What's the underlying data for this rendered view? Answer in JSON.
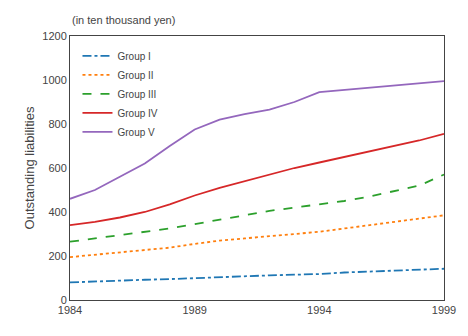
{
  "chart_data": {
    "type": "line",
    "x": [
      1984,
      1985,
      1986,
      1987,
      1988,
      1989,
      1990,
      1991,
      1992,
      1993,
      1994,
      1995,
      1996,
      1997,
      1998,
      1999
    ],
    "series": [
      {
        "name": "Group I",
        "line_style": "dashdot",
        "values": [
          80,
          85,
          90,
          92,
          95,
          100,
          105,
          108,
          112,
          115,
          118,
          125,
          130,
          135,
          138,
          142
        ]
      },
      {
        "name": "Group II",
        "line_style": "dotted",
        "values": [
          195,
          205,
          215,
          225,
          238,
          255,
          270,
          280,
          290,
          300,
          310,
          325,
          340,
          355,
          370,
          385
        ]
      },
      {
        "name": "Group III",
        "line_style": "dashed",
        "values": [
          265,
          280,
          292,
          308,
          325,
          345,
          365,
          385,
          405,
          420,
          435,
          450,
          470,
          495,
          520,
          570
        ]
      },
      {
        "name": "Group IV",
        "line_style": "solid",
        "values": [
          340,
          355,
          375,
          400,
          435,
          475,
          510,
          540,
          570,
          600,
          625,
          650,
          675,
          700,
          725,
          755
        ]
      },
      {
        "name": "Group V",
        "line_style": "solid",
        "values": [
          460,
          500,
          560,
          620,
          700,
          775,
          820,
          845,
          865,
          900,
          945,
          955,
          965,
          975,
          985,
          995
        ]
      }
    ],
    "y_label": "Outstanding liabilities",
    "annotations": [
      "(in ten thousand yen)"
    ],
    "xlim": [
      1984,
      1999
    ],
    "xticks": [
      1984,
      1989,
      1994,
      1999
    ],
    "ylim": [
      0,
      1200
    ],
    "yticks": [
      0,
      200,
      400,
      600,
      800,
      1000,
      1200
    ],
    "grid": false,
    "legend": "upper left"
  }
}
